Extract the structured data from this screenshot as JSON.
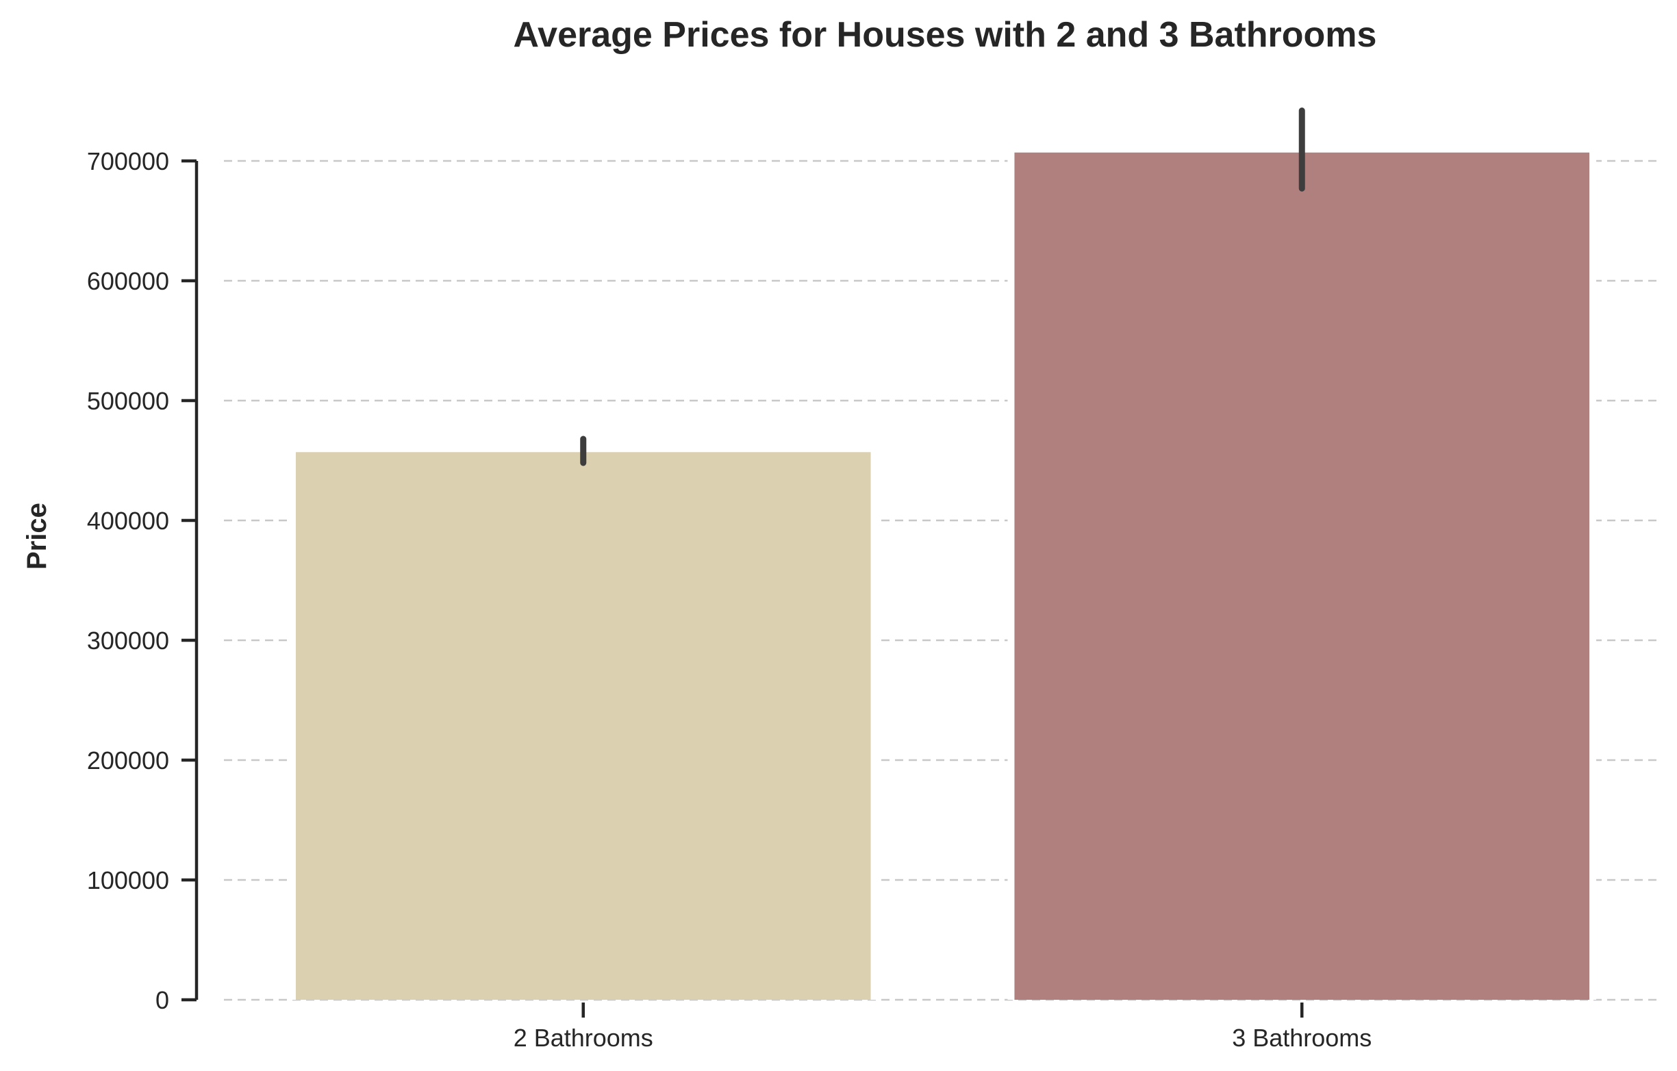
{
  "chart_data": {
    "type": "bar",
    "title": "Average Prices for Houses with 2 and 3 Bathrooms",
    "xlabel": "",
    "ylabel": "Price",
    "categories": [
      "2 Bathrooms",
      "3 Bathrooms"
    ],
    "values": [
      457000,
      707000
    ],
    "error_bars": [
      [
        448000,
        468000
      ],
      [
        677000,
        742000
      ]
    ],
    "colors": [
      "#dbd1b0",
      "#b0807f"
    ],
    "yticks": [
      0,
      100000,
      200000,
      300000,
      400000,
      500000,
      600000,
      700000
    ],
    "ytick_labels": [
      "0",
      "100000",
      "200000",
      "300000",
      "400000",
      "500000",
      "600000",
      "700000"
    ],
    "ylim": [
      0,
      700000
    ],
    "grid": "horizontal-dashed",
    "legend": "none"
  }
}
